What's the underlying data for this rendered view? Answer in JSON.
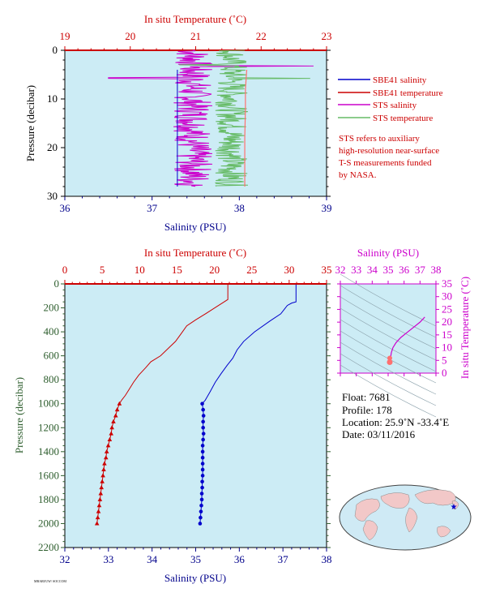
{
  "chart_data": [
    {
      "type": "line",
      "title": "",
      "top_axis_label": "In situ Temperature (˚C)",
      "top_ticks": [
        "19",
        "20",
        "21",
        "22",
        "23"
      ],
      "temp_range": [
        19,
        23
      ],
      "bottom_axis_label": "Salinity (PSU)",
      "bottom_ticks": [
        "36",
        "37",
        "38",
        "39"
      ],
      "sal_range": [
        36,
        39
      ],
      "ylabel": "Pressure (decibar)",
      "y_ticks": [
        "0",
        "10",
        "20",
        "30"
      ],
      "pressure_range": [
        0,
        30
      ],
      "legend": [
        {
          "label": "SBE41 salinity",
          "color": "#0000cc"
        },
        {
          "label": "SBE41 temperature",
          "color": "#cc0000"
        },
        {
          "label": "STS salinity",
          "color": "#cc00cc"
        },
        {
          "label": "STS temperature",
          "color": "#66bb66"
        }
      ],
      "note": [
        "STS refers to auxiliary",
        "high-resolution near-surface",
        "T-S measurements funded",
        "by NASA."
      ],
      "series": [
        {
          "name": "SBE41 salinity",
          "x_units": "PSU",
          "points": [
            [
              37.29,
              4
            ],
            [
              37.29,
              28
            ]
          ]
        },
        {
          "name": "SBE41 temperature",
          "x_units": "C",
          "points": [
            [
              21.78,
              4
            ],
            [
              21.76,
              8
            ],
            [
              21.76,
              12
            ],
            [
              21.75,
              18
            ],
            [
              21.75,
              24
            ],
            [
              21.75,
              28
            ]
          ]
        },
        {
          "name": "STS salinity",
          "x_units": "PSU",
          "mean": 37.47,
          "range": [
            36.5,
            38.85
          ],
          "spikes": [
            [
              38.85,
              3.2
            ],
            [
              36.5,
              5.7
            ]
          ],
          "pressure_span": [
            0,
            28
          ]
        },
        {
          "name": "STS temperature",
          "x_units": "C",
          "mean": 21.55,
          "range": [
            20.75,
            22.75
          ],
          "spikes": [
            [
              20.75,
              3.0
            ],
            [
              22.75,
              5.8
            ]
          ],
          "pressure_span": [
            0,
            28
          ]
        }
      ]
    },
    {
      "type": "line",
      "title": "",
      "top_axis_label": "In situ Temperature (˚C)",
      "top_ticks": [
        "0",
        "5",
        "10",
        "15",
        "20",
        "25",
        "30",
        "35"
      ],
      "temp_range": [
        0,
        35
      ],
      "bottom_axis_label": "Salinity (PSU)",
      "bottom_ticks": [
        "32",
        "33",
        "34",
        "35",
        "36",
        "37",
        "38"
      ],
      "sal_range": [
        32,
        38
      ],
      "ylabel": "Pressure (decibar)",
      "y_ticks": [
        "0",
        "200",
        "400",
        "600",
        "800",
        "1000",
        "1200",
        "1400",
        "1600",
        "1800",
        "2000",
        "2200"
      ],
      "pressure_range": [
        0,
        2200
      ],
      "series": [
        {
          "name": "SBE41 salinity",
          "color": "#0000cc",
          "line": [
            [
              37.3,
              5
            ],
            [
              37.3,
              150
            ],
            [
              37.2,
              160
            ],
            [
              37.1,
              180
            ],
            [
              36.95,
              250
            ],
            [
              36.7,
              310
            ],
            [
              36.35,
              400
            ],
            [
              36.1,
              480
            ],
            [
              35.95,
              550
            ],
            [
              35.85,
              620
            ],
            [
              35.72,
              680
            ],
            [
              35.58,
              750
            ],
            [
              35.45,
              820
            ],
            [
              35.33,
              900
            ],
            [
              35.22,
              970
            ],
            [
              35.15,
              1000
            ]
          ],
          "markers": [
            [
              35.15,
              1000
            ],
            [
              35.17,
              1050
            ],
            [
              35.18,
              1100
            ],
            [
              35.17,
              1150
            ],
            [
              35.17,
              1200
            ],
            [
              35.18,
              1250
            ],
            [
              35.17,
              1300
            ],
            [
              35.16,
              1350
            ],
            [
              35.16,
              1400
            ],
            [
              35.16,
              1450
            ],
            [
              35.16,
              1500
            ],
            [
              35.16,
              1550
            ],
            [
              35.16,
              1600
            ],
            [
              35.15,
              1650
            ],
            [
              35.15,
              1700
            ],
            [
              35.14,
              1750
            ],
            [
              35.14,
              1800
            ],
            [
              35.13,
              1850
            ],
            [
              35.12,
              1900
            ],
            [
              35.11,
              1950
            ],
            [
              35.1,
              2000
            ]
          ]
        },
        {
          "name": "SBE41 temperature",
          "color": "#cc0000",
          "line": [
            [
              21.8,
              5
            ],
            [
              21.8,
              130
            ],
            [
              21.3,
              150
            ],
            [
              20.3,
              190
            ],
            [
              18.8,
              250
            ],
            [
              17.5,
              300
            ],
            [
              16.3,
              350
            ],
            [
              15.5,
              420
            ],
            [
              14.8,
              480
            ],
            [
              13.8,
              540
            ],
            [
              12.8,
              600
            ],
            [
              11.5,
              650
            ],
            [
              10.8,
              700
            ],
            [
              9.9,
              760
            ],
            [
              9.2,
              820
            ],
            [
              8.6,
              880
            ],
            [
              8.1,
              930
            ],
            [
              7.6,
              970
            ],
            [
              7.3,
              1000
            ]
          ],
          "markers": [
            [
              7.3,
              1000
            ],
            [
              7.0,
              1050
            ],
            [
              6.8,
              1100
            ],
            [
              6.5,
              1150
            ],
            [
              6.3,
              1200
            ],
            [
              6.2,
              1250
            ],
            [
              6.0,
              1300
            ],
            [
              5.8,
              1350
            ],
            [
              5.6,
              1400
            ],
            [
              5.5,
              1450
            ],
            [
              5.3,
              1500
            ],
            [
              5.2,
              1550
            ],
            [
              5.1,
              1600
            ],
            [
              5.0,
              1650
            ],
            [
              4.9,
              1700
            ],
            [
              4.8,
              1750
            ],
            [
              4.7,
              1800
            ],
            [
              4.6,
              1850
            ],
            [
              4.5,
              1900
            ],
            [
              4.4,
              1950
            ],
            [
              4.3,
              2000
            ]
          ]
        }
      ]
    },
    {
      "type": "scatter",
      "title": "",
      "top_axis_label": "Salinity (PSU)",
      "top_ticks": [
        "32",
        "33",
        "34",
        "35",
        "36",
        "37",
        "38"
      ],
      "sal_range": [
        32,
        38
      ],
      "ylabel": "In situ Temperature (˚C)",
      "y_ticks": [
        "0",
        "5",
        "10",
        "15",
        "20",
        "25",
        "30",
        "35"
      ],
      "temp_range": [
        0,
        35
      ],
      "ts_curve": [
        [
          37.3,
          22
        ],
        [
          37.0,
          20
        ],
        [
          36.6,
          18
        ],
        [
          36.2,
          16
        ],
        [
          35.8,
          14
        ],
        [
          35.5,
          12
        ],
        [
          35.3,
          10
        ],
        [
          35.2,
          8
        ],
        [
          35.15,
          6
        ],
        [
          35.1,
          4.3
        ]
      ],
      "grid": "density contours"
    }
  ],
  "float_info": {
    "float": "Float:  7681",
    "profile": "Profile:  178",
    "location": "Location:  25.9˚N  -33.4˚E",
    "date": "Date:  03/11/2016"
  },
  "footer_tag": "MBARI/UW/ SOCCOM"
}
